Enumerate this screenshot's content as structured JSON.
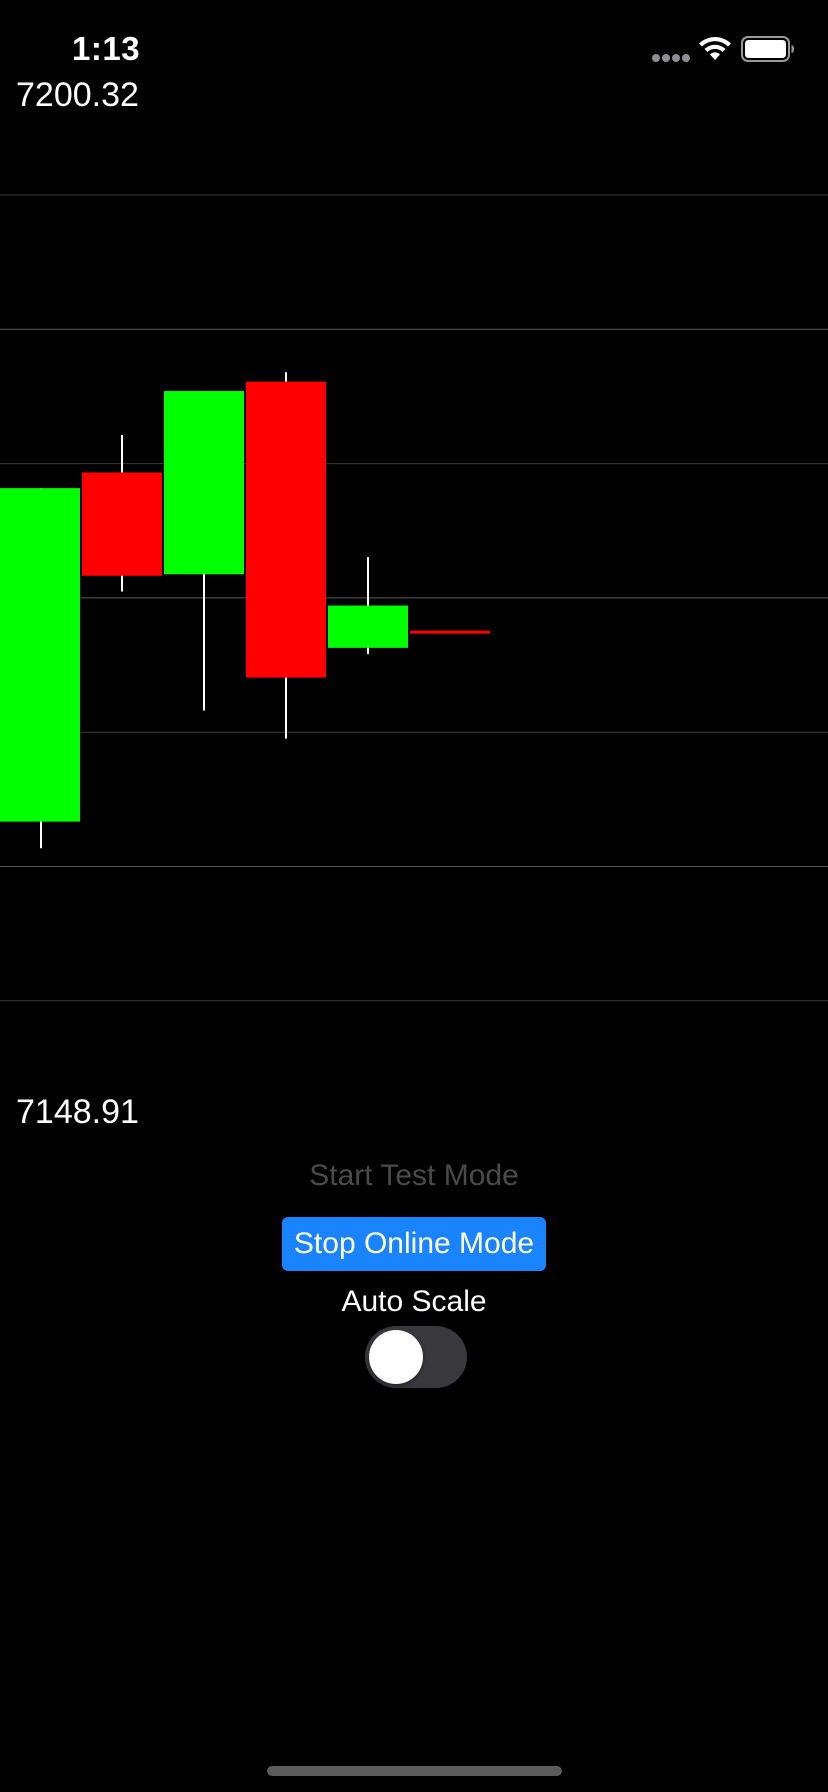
{
  "status_bar": {
    "time": "1:13",
    "icons": [
      "cellular-signal-icon",
      "wifi-icon",
      "battery-icon"
    ]
  },
  "price_axis": {
    "high_label": "7200.32",
    "low_label": "7148.91"
  },
  "chart_data": {
    "type": "candlestick",
    "y_max": 7200.32,
    "y_min": 7148.91,
    "gridline_count": 7,
    "colors": {
      "up": "#00ff00",
      "down": "#ff0000",
      "wick": "#ffffff",
      "grid": "#3a3a3a",
      "background": "#000000"
    },
    "candles": [
      {
        "open": 7160.3,
        "close": 7181.6,
        "high": 7181.6,
        "low": 7158.6,
        "direction": "up"
      },
      {
        "open": 7182.6,
        "close": 7176.0,
        "high": 7185.0,
        "low": 7175.0,
        "direction": "down"
      },
      {
        "open": 7176.1,
        "close": 7187.8,
        "high": 7187.8,
        "low": 7167.4,
        "direction": "up"
      },
      {
        "open": 7188.4,
        "close": 7169.5,
        "high": 7189.0,
        "low": 7165.6,
        "direction": "down"
      },
      {
        "open": 7171.4,
        "close": 7174.1,
        "high": 7177.2,
        "low": 7171.0,
        "direction": "up"
      },
      {
        "open": 7172.4,
        "close": 7172.4,
        "high": 7172.4,
        "low": 7172.4,
        "direction": "down"
      }
    ]
  },
  "controls": {
    "test_mode_label": "Start Test Mode",
    "online_mode_label": "Stop Online Mode",
    "auto_scale_label": "Auto Scale",
    "auto_scale_enabled": false
  },
  "colors": {
    "accent": "#1a84ff",
    "disabled_text": "#4a4a4a",
    "toggle_off": "#39393d"
  }
}
